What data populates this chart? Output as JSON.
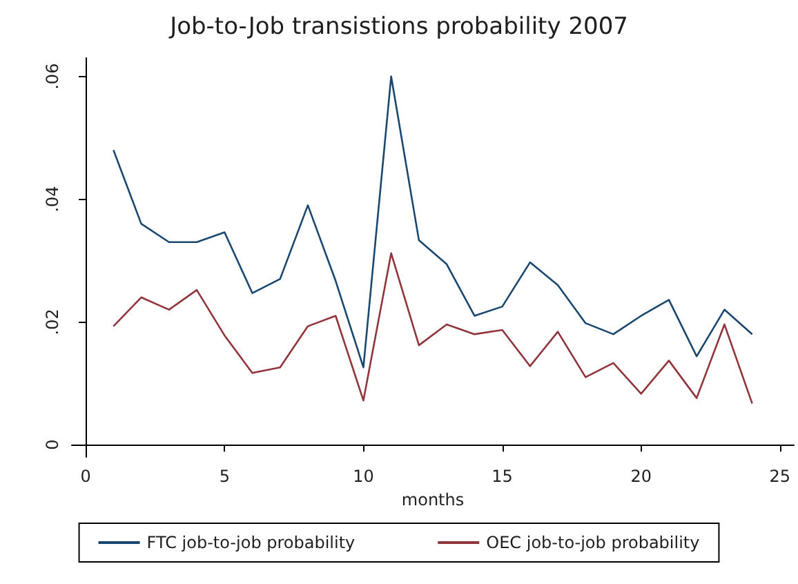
{
  "chart_data": {
    "type": "line",
    "title": "Job-to-Job transistions probability 2007",
    "xlabel": "months",
    "x": [
      1,
      2,
      3,
      4,
      5,
      6,
      7,
      8,
      9,
      10,
      11,
      12,
      13,
      14,
      15,
      16,
      17,
      18,
      19,
      20,
      21,
      22,
      23,
      24
    ],
    "series": [
      {
        "name": "FTC job-to-job probability",
        "color": "#1a476f",
        "values": [
          0.048,
          0.036,
          0.033,
          0.033,
          0.0346,
          0.0247,
          0.027,
          0.039,
          0.0267,
          0.0126,
          0.06,
          0.0333,
          0.0294,
          0.021,
          0.0225,
          0.0297,
          0.026,
          0.0198,
          0.018,
          0.021,
          0.0236,
          0.0144,
          0.022,
          0.018
        ]
      },
      {
        "name": "OEC job-to-job probability",
        "color": "#90353b",
        "values": [
          0.0193,
          0.024,
          0.022,
          0.0252,
          0.0178,
          0.0117,
          0.0126,
          0.0193,
          0.021,
          0.0072,
          0.0312,
          0.0162,
          0.0196,
          0.018,
          0.0187,
          0.0128,
          0.0184,
          0.011,
          0.0133,
          0.0083,
          0.0137,
          0.0076,
          0.0196,
          0.0067
        ]
      }
    ],
    "xlim": [
      -0.5,
      25.5
    ],
    "xticks": [
      0,
      5,
      10,
      15,
      20,
      25
    ],
    "ylim": [
      -0.002,
      0.063
    ],
    "yticks": [
      0,
      {
        "value": 0.02,
        "label": ".02"
      },
      {
        "value": 0.04,
        "label": ".04"
      },
      {
        "value": 0.06,
        "label": ".06"
      }
    ],
    "grid": false,
    "legend": "bottom",
    "marker": "none",
    "line_style": "solid"
  }
}
